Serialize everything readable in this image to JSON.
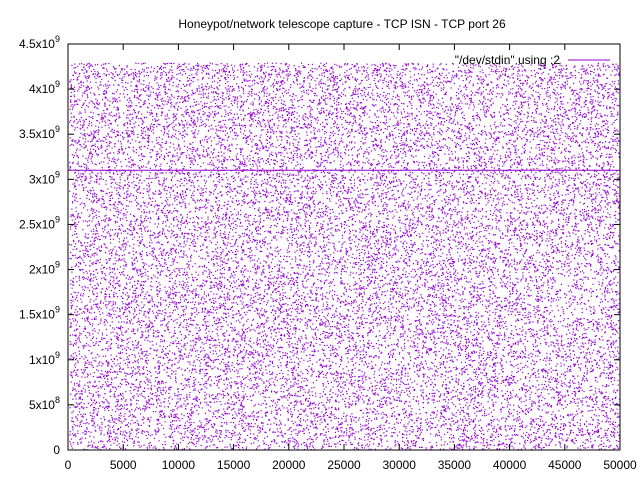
{
  "chart_data": {
    "type": "scatter",
    "title": "Honeypot/network telescope capture - TCP ISN - TCP port 26",
    "xlabel": "",
    "ylabel": "",
    "xlim": [
      0,
      50000
    ],
    "ylim": [
      0,
      4500000000
    ],
    "x_ticks": [
      0,
      5000,
      10000,
      15000,
      20000,
      25000,
      30000,
      35000,
      40000,
      45000,
      50000
    ],
    "x_tick_labels": [
      "0",
      "5000",
      "10000",
      "15000",
      "20000",
      "25000",
      "30000",
      "35000",
      "40000",
      "45000",
      "50000"
    ],
    "y_ticks": [
      0,
      500000000,
      1000000000,
      1500000000,
      2000000000,
      2500000000,
      3000000000,
      3500000000,
      4000000000,
      4500000000
    ],
    "y_tick_labels": [
      {
        "mantissa": "0",
        "exp": ""
      },
      {
        "mantissa": "5x10",
        "exp": "8"
      },
      {
        "mantissa": "1x10",
        "exp": "9"
      },
      {
        "mantissa": "1.5x10",
        "exp": "9"
      },
      {
        "mantissa": "2x10",
        "exp": "9"
      },
      {
        "mantissa": "2.5x10",
        "exp": "9"
      },
      {
        "mantissa": "3x10",
        "exp": "9"
      },
      {
        "mantissa": "3.5x10",
        "exp": "9"
      },
      {
        "mantissa": "4x10",
        "exp": "9"
      },
      {
        "mantissa": "4.5x10",
        "exp": "9"
      }
    ],
    "grid": false,
    "legend_position": "top-right",
    "series": [
      {
        "name": "\"/dev/stdin\" using :2",
        "color": "#9400d3",
        "marker": "dot",
        "distribution": "uniform",
        "x_range": [
          0,
          50000
        ],
        "y_range": [
          0,
          4294967295
        ],
        "constant_line_y": 3100000000,
        "sample_points": [
          [
            1200,
            3850000000
          ],
          [
            4300,
            820000000
          ],
          [
            7800,
            2410000000
          ],
          [
            11500,
            150000000
          ],
          [
            15200,
            3990000000
          ],
          [
            19800,
            1730000000
          ],
          [
            24100,
            2980000000
          ],
          [
            28700,
            560000000
          ],
          [
            33400,
            4120000000
          ],
          [
            37900,
            1240000000
          ],
          [
            41600,
            3370000000
          ],
          [
            46200,
            2050000000
          ],
          [
            49300,
            690000000
          ]
        ]
      }
    ]
  }
}
